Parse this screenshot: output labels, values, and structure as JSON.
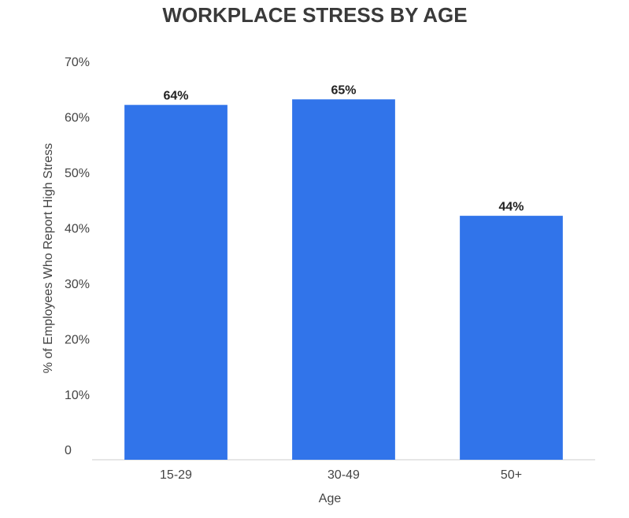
{
  "chart_data": {
    "type": "bar",
    "title": "WORKPLACE STRESS BY AGE",
    "x_label": "Age",
    "y_label": "% of Employees Who Report High Stress",
    "categories": [
      "15-29",
      "30-49",
      "50+"
    ],
    "values": [
      64,
      65,
      44
    ],
    "value_labels": [
      "64%",
      "65%",
      "44%"
    ],
    "color": "#3174ea",
    "ylim": [
      0,
      70
    ],
    "yticks": [
      0,
      {
        "value": 10,
        "label": "10%"
      },
      {
        "value": 20,
        "label": "20%"
      },
      {
        "value": 30,
        "label": "30%"
      },
      {
        "value": 40,
        "label": "40%"
      },
      {
        "value": 50,
        "label": "50%"
      },
      {
        "value": 60,
        "label": "60%"
      },
      {
        "value": 70,
        "label": "70%"
      }
    ],
    "grid": false
  }
}
